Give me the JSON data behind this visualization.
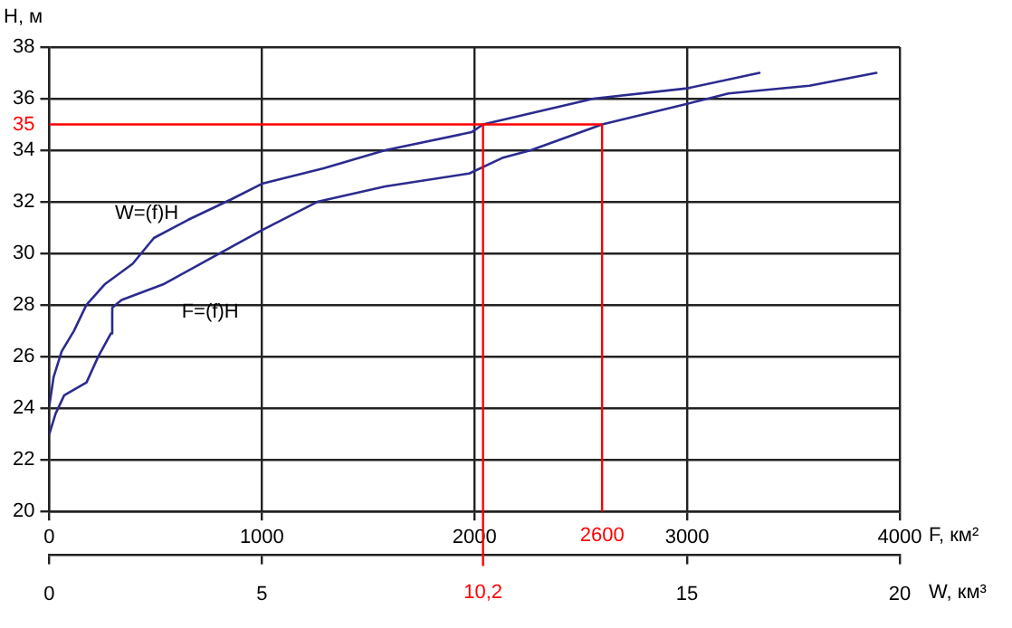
{
  "chart_data": {
    "type": "line",
    "xlabel": "F, км²",
    "x2label": "W, км³",
    "ylabel": "H, м",
    "xlim": [
      0,
      4000
    ],
    "xticks": [
      0,
      1000,
      2000,
      3000,
      4000
    ],
    "x2lim": [
      0,
      20
    ],
    "x2ticks": [
      0,
      5,
      15,
      20
    ],
    "ylim": [
      20,
      38
    ],
    "yticks": [
      20,
      22,
      24,
      26,
      28,
      30,
      32,
      34,
      36,
      38
    ],
    "grid": true,
    "legend": false,
    "marker": "none",
    "line_style": "solid",
    "series": [
      {
        "name": "W=(f)H",
        "color": "#2b2b8f",
        "axis": "x2",
        "x": [
          0,
          0.1,
          0.29,
          0.58,
          0.87,
          1.3,
          1.96,
          2.46,
          3.26,
          4.28,
          5.0,
          6.45,
          7.9,
          9.93,
          10.2,
          12.8,
          15.0,
          16.7
        ],
        "values": [
          24.1,
          25.2,
          26.2,
          27.0,
          28.0,
          28.8,
          29.6,
          30.6,
          31.3,
          32.1,
          32.7,
          33.3,
          34.0,
          34.7,
          35.0,
          36.0,
          36.4,
          37.0
        ]
      },
      {
        "name": "F=(f)H",
        "color": "#2b2b8f",
        "x": [
          0,
          30,
          70,
          175,
          230,
          290,
          296,
          340,
          535,
          800,
          1000,
          1260,
          1580,
          1975,
          2130,
          2265,
          2600,
          3000,
          3195,
          3575,
          3890
        ],
        "values": [
          23.0,
          23.8,
          24.5,
          25.0,
          26.0,
          26.9,
          27.9,
          28.2,
          28.8,
          30.0,
          30.9,
          32.0,
          32.6,
          33.1,
          33.7,
          34.0,
          35.0,
          35.8,
          36.2,
          36.5,
          37.0
        ]
      }
    ],
    "ref_lines": [
      {
        "axis": "y",
        "value": 35,
        "label": "35",
        "color": "#ff0000"
      },
      {
        "axis": "x2",
        "value": 10.2,
        "label": "10,2",
        "color": "#ff0000"
      },
      {
        "axis": "x",
        "value": 2600,
        "label": "2600",
        "color": "#ff0000"
      }
    ]
  }
}
